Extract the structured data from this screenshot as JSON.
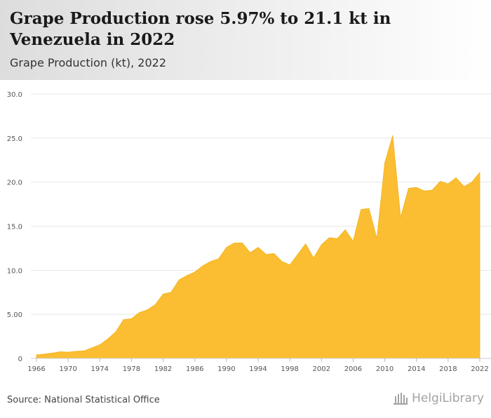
{
  "header": {
    "title": "Grape Production rose 5.97% to 21.1 kt in Venezuela in 2022",
    "subtitle": "Grape Production (kt), 2022"
  },
  "footer": {
    "source": "Source: National Statistical Office",
    "brand": "HelgiLibrary"
  },
  "colors": {
    "area_fill": "#FBBE32",
    "area_stroke": "#F2B21C",
    "grid": "#e6e6e6",
    "axis_text": "#555555"
  },
  "chart_data": {
    "type": "area",
    "title": "Grape Production (kt), 2022",
    "xlabel": "",
    "ylabel": "",
    "xlim": [
      1966,
      2022
    ],
    "ylim": [
      0,
      30
    ],
    "x_ticks": [
      1966,
      1970,
      1974,
      1978,
      1982,
      1986,
      1990,
      1994,
      1998,
      2002,
      2006,
      2010,
      2014,
      2018,
      2022
    ],
    "y_ticks": [
      0,
      5,
      10,
      15,
      20,
      25,
      30
    ],
    "y_tick_labels": [
      "0",
      "5.00",
      "10.0",
      "15.0",
      "20.0",
      "25.0",
      "30.0"
    ],
    "grid": true,
    "legend": "none",
    "series": [
      {
        "x": [
          1966,
          1967,
          1968,
          1969,
          1970,
          1971,
          1972,
          1973,
          1974,
          1975,
          1976,
          1977,
          1978,
          1979,
          1980,
          1981,
          1982,
          1983,
          1984,
          1985,
          1986,
          1987,
          1988,
          1989,
          1990,
          1991,
          1992,
          1993,
          1994,
          1995,
          1996,
          1997,
          1998,
          1999,
          2000,
          2001,
          2002,
          2003,
          2004,
          2005,
          2006,
          2007,
          2008,
          2009,
          2010,
          2011,
          2012,
          2013,
          2014,
          2015,
          2016,
          2017,
          2018,
          2019,
          2020,
          2021,
          2022
        ],
        "values": [
          0.4,
          0.5,
          0.6,
          0.75,
          0.7,
          0.8,
          0.85,
          1.2,
          1.55,
          2.2,
          3.0,
          4.4,
          4.5,
          5.2,
          5.5,
          6.1,
          7.3,
          7.5,
          8.9,
          9.4,
          9.8,
          10.5,
          11.0,
          11.3,
          12.6,
          13.1,
          13.1,
          12.0,
          12.6,
          11.8,
          11.9,
          11.0,
          10.6,
          11.8,
          13.0,
          11.4,
          12.9,
          13.7,
          13.6,
          14.6,
          13.3,
          16.9,
          17.0,
          13.6,
          22.2,
          25.3,
          16.0,
          19.3,
          19.4,
          19.0,
          19.1,
          20.1,
          19.8,
          20.5,
          19.5,
          20.0,
          21.1
        ]
      }
    ]
  }
}
